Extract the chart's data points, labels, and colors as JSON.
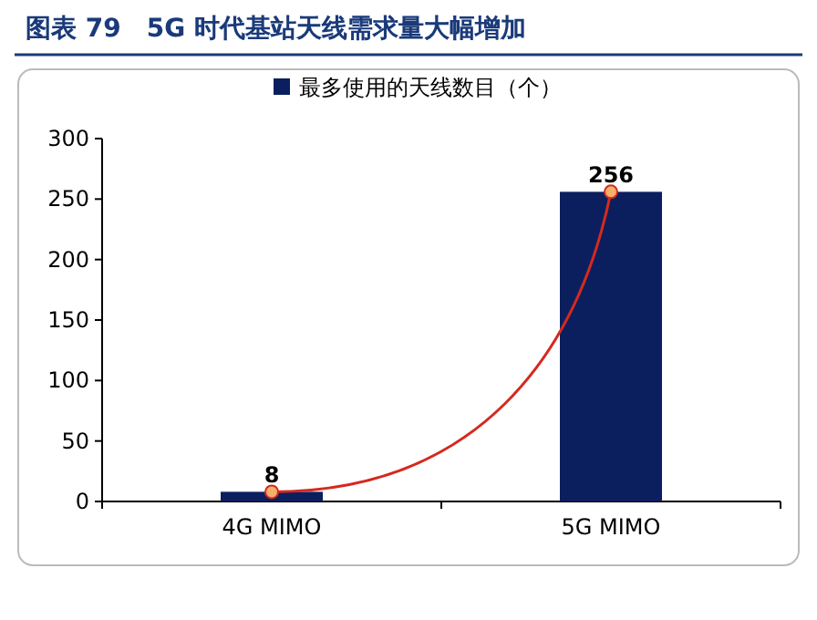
{
  "chart_data": {
    "type": "bar",
    "title": "图表 79　5G 时代基站天线需求量大幅增加",
    "categories": [
      "4G MIMO",
      "5G MIMO"
    ],
    "series": [
      {
        "name": "最多使用的天线数目（个）",
        "color": "#0b1f5e",
        "values": [
          8,
          256
        ],
        "value_labels": [
          "8",
          "256"
        ]
      },
      {
        "type": "line",
        "color": "#d42a1f",
        "values": [
          8,
          256
        ],
        "marker": "circle"
      }
    ],
    "ylim": [
      0,
      300
    ],
    "yticks": [
      0,
      50,
      100,
      150,
      200,
      250,
      300
    ],
    "legend": "top"
  }
}
